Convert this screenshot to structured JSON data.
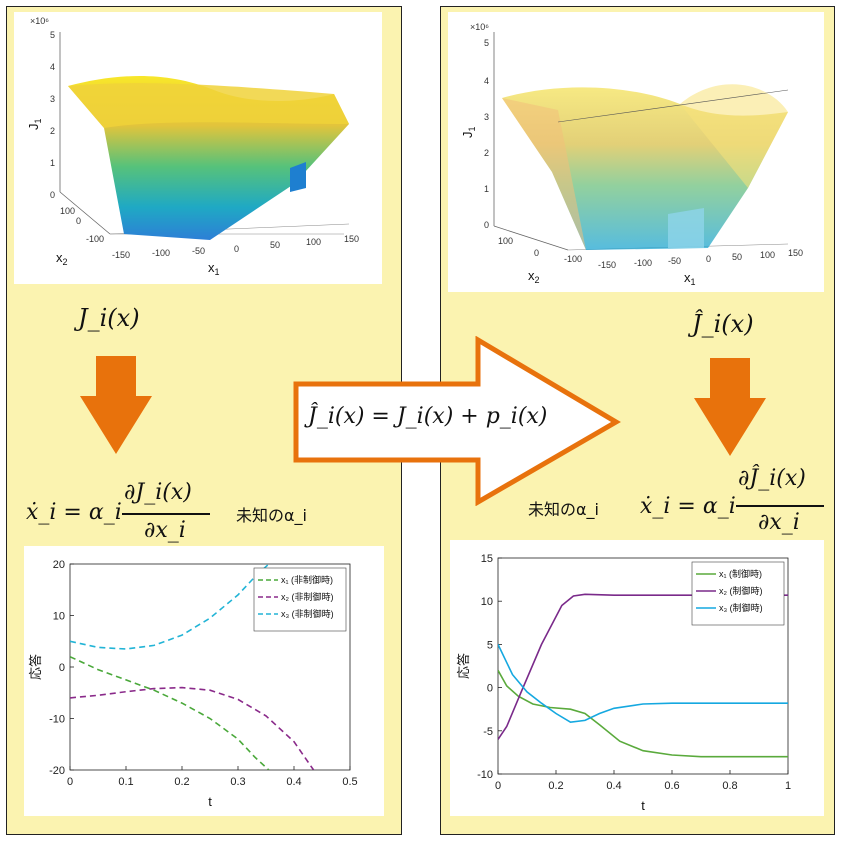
{
  "colors": {
    "panel_bg": "#fbf3b0",
    "arrow_orange": "#e8720c",
    "uncontrolled_x1": "#4aa83a",
    "uncontrolled_x2": "#8a2a8a",
    "uncontrolled_x3": "#22b4d6",
    "controlled_x1": "#5aaa3c",
    "controlled_x2": "#7a2a8a",
    "controlled_x3": "#15a8e0"
  },
  "left": {
    "surface": {
      "exponent_label": "×10⁶",
      "z_label": "J",
      "z_sub": "1",
      "z_ticks": [
        "5",
        "4",
        "3",
        "2",
        "1",
        "0"
      ],
      "x1_label": "x",
      "x1_sub": "1",
      "x2_label": "x",
      "x2_sub": "2",
      "x1_ticks": [
        "-150",
        "-100",
        "-50",
        "0",
        "50",
        "100",
        "150"
      ],
      "x2_ticks": [
        "100",
        "0",
        "-100"
      ]
    },
    "cost_label": "J_i(x)",
    "equation_lhs": "ẋ_i = α_i",
    "equation_num": "∂J_i(x)",
    "equation_den": "∂x_i",
    "note": "未知のα_i"
  },
  "right": {
    "surface": {
      "exponent_label": "×10⁶",
      "z_label": "J",
      "z_sub": "1",
      "z_ticks": [
        "5",
        "4",
        "3",
        "2",
        "1",
        "0"
      ],
      "x1_label": "x",
      "x1_sub": "1",
      "x2_label": "x",
      "x2_sub": "2",
      "x1_ticks": [
        "-150",
        "-100",
        "-50",
        "0",
        "50",
        "100",
        "150"
      ],
      "x2_ticks": [
        "100",
        "0",
        "-100"
      ]
    },
    "cost_label": "Ĵ_i(x)",
    "equation_lhs": "ẋ_i = α_i",
    "equation_num": "∂Ĵ_i(x)",
    "equation_den": "∂x_i",
    "note": "未知のα_i"
  },
  "middle_arrow": {
    "equation": "Ĵ_i(x) = J_i(x) + p_i(x)"
  },
  "chart_data": [
    {
      "type": "line",
      "title": "",
      "xlabel": "t",
      "ylabel": "応答",
      "xlim": [
        0,
        0.5
      ],
      "ylim": [
        -20,
        20
      ],
      "xticks": [
        "0",
        "0.1",
        "0.2",
        "0.3",
        "0.4",
        "0.5"
      ],
      "yticks": [
        "20",
        "10",
        "0",
        "-10",
        "-20"
      ],
      "legend_position": "top-right",
      "series": [
        {
          "name": "x₁ (非制御時)",
          "style": "dashed",
          "x": [
            0,
            0.05,
            0.1,
            0.15,
            0.2,
            0.25,
            0.3,
            0.33,
            0.355
          ],
          "y": [
            2,
            -0.5,
            -2.5,
            -4.5,
            -7,
            -10,
            -14,
            -17.5,
            -20
          ]
        },
        {
          "name": "x₂ (非制御時)",
          "style": "dashed",
          "x": [
            0,
            0.05,
            0.1,
            0.15,
            0.2,
            0.25,
            0.3,
            0.35,
            0.4,
            0.435
          ],
          "y": [
            -6,
            -5.5,
            -4.8,
            -4.2,
            -4,
            -4.5,
            -6.3,
            -9.5,
            -14.5,
            -20
          ]
        },
        {
          "name": "x₃ (非制御時)",
          "style": "dashed",
          "x": [
            0,
            0.05,
            0.1,
            0.15,
            0.2,
            0.25,
            0.3,
            0.33,
            0.355
          ],
          "y": [
            5,
            3.8,
            3.5,
            4.2,
            6.2,
            9.5,
            14,
            17.5,
            20
          ]
        }
      ]
    },
    {
      "type": "line",
      "title": "",
      "xlabel": "t",
      "ylabel": "応答",
      "xlim": [
        0,
        1
      ],
      "ylim": [
        -10,
        15
      ],
      "xticks": [
        "0",
        "0.2",
        "0.4",
        "0.6",
        "0.8",
        "1"
      ],
      "yticks": [
        "15",
        "10",
        "5",
        "0",
        "-5",
        "-10"
      ],
      "legend_position": "top-right",
      "series": [
        {
          "name": "x₁ (制御時)",
          "style": "solid",
          "x": [
            0,
            0.03,
            0.07,
            0.12,
            0.18,
            0.25,
            0.3,
            0.35,
            0.42,
            0.5,
            0.6,
            0.7,
            0.8,
            0.9,
            1.0
          ],
          "y": [
            2,
            0.2,
            -1,
            -1.9,
            -2.3,
            -2.5,
            -3,
            -4.3,
            -6.2,
            -7.3,
            -7.8,
            -8,
            -8,
            -8,
            -8
          ]
        },
        {
          "name": "x₂ (制御時)",
          "style": "solid",
          "x": [
            0,
            0.03,
            0.08,
            0.15,
            0.22,
            0.26,
            0.3,
            0.4,
            0.5,
            0.6,
            0.7,
            0.8,
            0.9,
            1.0
          ],
          "y": [
            -6,
            -4.5,
            -0.5,
            5,
            9.5,
            10.6,
            10.8,
            10.7,
            10.7,
            10.7,
            10.7,
            10.7,
            10.7,
            10.7
          ]
        },
        {
          "name": "x₃ (制御時)",
          "style": "solid",
          "x": [
            0,
            0.05,
            0.1,
            0.15,
            0.2,
            0.25,
            0.3,
            0.35,
            0.4,
            0.5,
            0.6,
            0.7,
            0.8,
            0.9,
            1.0
          ],
          "y": [
            5,
            1.5,
            -0.5,
            -1.8,
            -3,
            -4,
            -3.8,
            -3,
            -2.4,
            -1.9,
            -1.8,
            -1.8,
            -1.8,
            -1.8,
            -1.8
          ]
        }
      ]
    }
  ]
}
